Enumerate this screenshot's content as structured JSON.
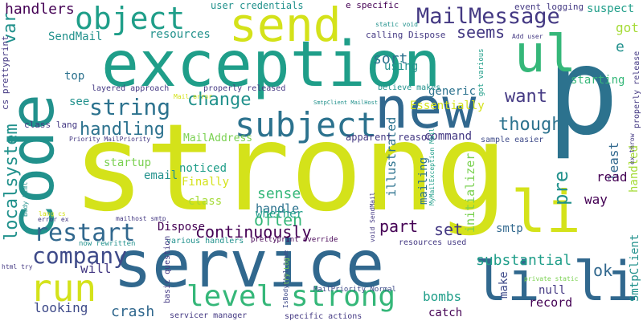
{
  "colors": {
    "background": "#ffffff",
    "yellow": "#d4e21a",
    "green": "#7ad151",
    "lightgreen": "#a5db36",
    "teal": "#21918c",
    "darkteal": "#1f9e89",
    "seagreen": "#35b779",
    "blue": "#31688e",
    "slate": "#3e4a89",
    "indigo": "#443983",
    "purple": "#440154",
    "midblue": "#2c728e"
  },
  "words": [
    {
      "text": "strong",
      "color": "yellow"
    },
    {
      "text": "exception",
      "color": "darkteal"
    },
    {
      "text": "service",
      "color": "blue"
    },
    {
      "text": "p",
      "color": "midblue"
    },
    {
      "text": "new",
      "color": "blue"
    },
    {
      "text": "code",
      "color": "teal"
    },
    {
      "text": "ul",
      "color": "seagreen"
    },
    {
      "text": "li",
      "color": "yellow"
    },
    {
      "text": "send",
      "color": "yellow"
    },
    {
      "text": "object",
      "color": "darkteal"
    },
    {
      "text": "li li",
      "color": "blue"
    },
    {
      "text": "subject",
      "color": "midblue"
    },
    {
      "text": "level strong",
      "color": "seagreen"
    },
    {
      "text": "run",
      "color": "yellow"
    },
    {
      "text": "MailMessage",
      "color": "indigo"
    },
    {
      "text": "restart",
      "color": "blue"
    },
    {
      "text": "string",
      "color": "midblue"
    },
    {
      "text": "company",
      "color": "slate"
    },
    {
      "text": "continuously",
      "color": "purple"
    },
    {
      "text": "localsystem",
      "color": "teal"
    },
    {
      "text": "var",
      "color": "teal"
    },
    {
      "text": "change",
      "color": "teal"
    },
    {
      "text": "handling",
      "color": "midblue"
    },
    {
      "text": "pre",
      "color": "teal"
    },
    {
      "text": "though",
      "color": "midblue"
    },
    {
      "text": "want",
      "color": "indigo"
    },
    {
      "text": "seems",
      "color": "indigo"
    },
    {
      "text": "sort",
      "color": "midblue"
    },
    {
      "text": "e",
      "color": "teal"
    },
    {
      "text": "got",
      "color": "lightgreen"
    },
    {
      "text": "suspect",
      "color": "darkteal"
    },
    {
      "text": "handlers",
      "color": "purple"
    },
    {
      "text": "SendMail",
      "color": "teal"
    },
    {
      "text": "resources",
      "color": "teal"
    },
    {
      "text": "user credentials",
      "color": "teal"
    },
    {
      "text": "top",
      "color": "midblue"
    },
    {
      "text": "see",
      "color": "teal"
    },
    {
      "text": "layered approach",
      "color": "indigo"
    },
    {
      "text": "properly released",
      "color": "indigo"
    },
    {
      "text": "using",
      "color": "teal"
    },
    {
      "text": "generic",
      "color": "midblue"
    },
    {
      "text": "illustrated",
      "color": "midblue"
    },
    {
      "text": "Essentially",
      "color": "yellow"
    },
    {
      "text": "command",
      "color": "indigo"
    },
    {
      "text": "starting",
      "color": "seagreen"
    },
    {
      "text": "least",
      "color": "blue"
    },
    {
      "text": "part",
      "color": "purple"
    },
    {
      "text": "set",
      "color": "indigo"
    },
    {
      "text": "sense",
      "color": "seagreen"
    },
    {
      "text": "startup",
      "color": "green"
    },
    {
      "text": "email",
      "color": "teal"
    },
    {
      "text": "noticed",
      "color": "darkteal"
    },
    {
      "text": "Finally",
      "color": "yellow"
    },
    {
      "text": "class",
      "color": "lightgreen"
    },
    {
      "text": "handle",
      "color": "midblue"
    },
    {
      "text": "often",
      "color": "seagreen"
    },
    {
      "text": "whether",
      "color": "darkteal"
    },
    {
      "text": "Dispose",
      "color": "purple"
    },
    {
      "text": "mailing",
      "color": "midblue"
    },
    {
      "text": "initializer",
      "color": "green"
    },
    {
      "text": "read",
      "color": "purple"
    },
    {
      "text": "way",
      "color": "purple"
    },
    {
      "text": "handled",
      "color": "lightgreen"
    },
    {
      "text": "smtp",
      "color": "blue"
    },
    {
      "text": "substantial",
      "color": "darkteal"
    },
    {
      "text": "ok",
      "color": "blue"
    },
    {
      "text": "make",
      "color": "slate"
    },
    {
      "text": "null",
      "color": "indigo"
    },
    {
      "text": "record",
      "color": "purple"
    },
    {
      "text": "bombs",
      "color": "darkteal"
    },
    {
      "text": "catch",
      "color": "purple"
    },
    {
      "text": "crash",
      "color": "blue"
    },
    {
      "text": "will",
      "color": "indigo"
    },
    {
      "text": "looking",
      "color": "slate"
    },
    {
      "text": "MailAddress",
      "color": "green"
    },
    {
      "text": "apparent reason",
      "color": "indigo"
    },
    {
      "text": "SmtpClient",
      "color": "teal"
    },
    {
      "text": "calling Dispose",
      "color": "indigo"
    },
    {
      "text": "e specific",
      "color": "purple"
    },
    {
      "text": "static void",
      "color": "teal"
    },
    {
      "text": "event logging",
      "color": "indigo"
    },
    {
      "text": "Add user",
      "color": "indigo"
    },
    {
      "text": "sample easier",
      "color": "slate"
    },
    {
      "text": "believe makes",
      "color": "teal"
    },
    {
      "text": "got various",
      "color": "darkteal"
    },
    {
      "text": "SmtpClient MailHost",
      "color": "teal"
    },
    {
      "text": "Mail error",
      "color": "yellow"
    },
    {
      "text": "class lang",
      "color": "indigo"
    },
    {
      "text": "cs prettyprint",
      "color": "indigo"
    },
    {
      "text": "Priority MailPriority",
      "color": "indigo"
    },
    {
      "text": "prettyprint override",
      "color": "purple"
    },
    {
      "text": "now rewritten",
      "color": "teal"
    },
    {
      "text": "various handlers",
      "color": "teal"
    },
    {
      "text": "basic question",
      "color": "indigo"
    },
    {
      "text": "IsBodyHtml true",
      "color": "slate"
    },
    {
      "text": "MailPriority Normal",
      "color": "slate"
    },
    {
      "text": "resources used",
      "color": "indigo"
    },
    {
      "text": "servicer manager",
      "color": "indigo"
    },
    {
      "text": "specific actions",
      "color": "indigo"
    },
    {
      "text": "private static",
      "color": "green"
    },
    {
      "text": "mailhost smtp",
      "color": "indigo"
    },
    {
      "text": "html try",
      "color": "indigo"
    },
    {
      "text": "void SendMail",
      "color": "indigo"
    },
    {
      "text": "error ex",
      "color": "indigo"
    },
    {
      "text": "lang cs",
      "color": "yellow"
    },
    {
      "text": "Body html",
      "color": "teal"
    },
    {
      "text": "properly release",
      "color": "indigo"
    },
    {
      "text": "ex throw",
      "color": "indigo"
    },
    {
      "text": "MyMailException Mail",
      "color": "darkteal"
    },
    {
      "text": "try Log",
      "color": "green"
    }
  ]
}
